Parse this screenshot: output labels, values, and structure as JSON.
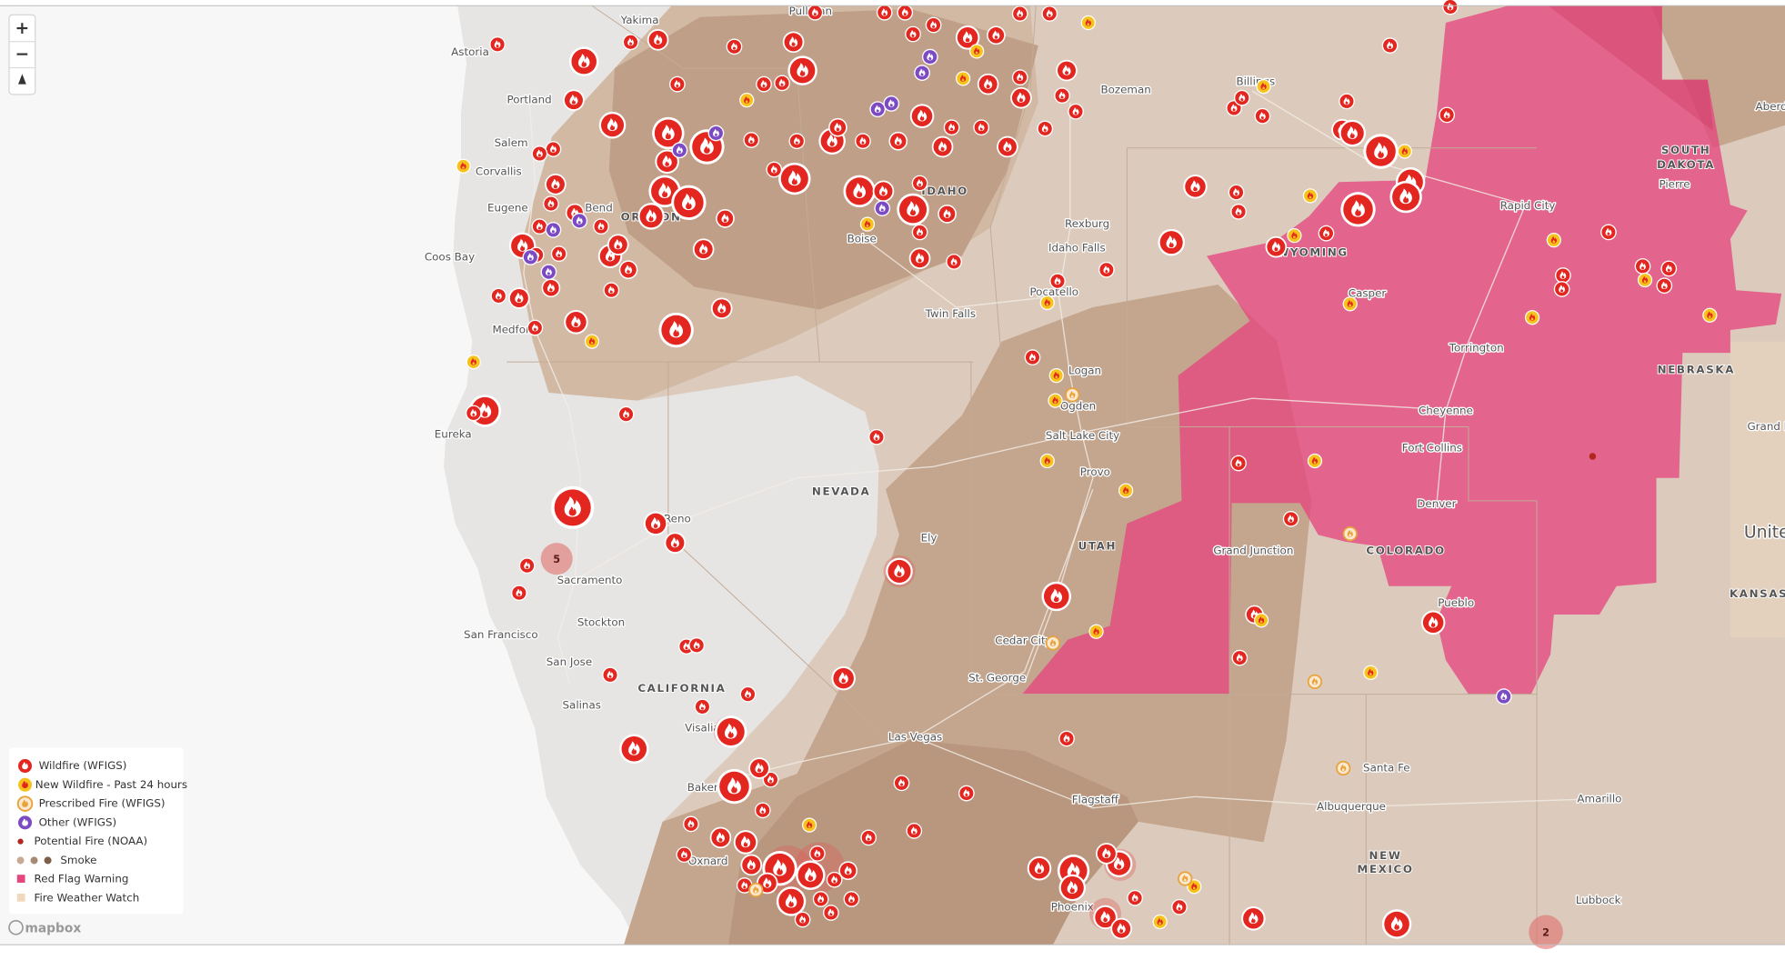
{
  "map": {
    "controls": {
      "zoom_in": "+",
      "zoom_out": "−"
    },
    "labels": [
      "Yakima",
      "Pullman",
      "Astoria",
      "Portland",
      "Salem",
      "Corvallis",
      "Eugene",
      "Bend",
      "OREGON",
      "Coos Bay",
      "Medford",
      "Eureka",
      "Reno",
      "NEVADA",
      "Sacramento",
      "San Francisco",
      "Stockton",
      "San Jose",
      "CALIFORNIA",
      "Salinas",
      "Visalia",
      "Bakersfield",
      "Oxnard",
      "Las Vegas",
      "Ely",
      "Boise",
      "IDAHO",
      "Bozeman",
      "Billings",
      "Rexburg",
      "Idaho Falls",
      "Pocatello",
      "Twin Falls",
      "Logan",
      "Ogden",
      "Salt Lake City",
      "Provo",
      "UTAH",
      "Cedar City",
      "St. George",
      "Flagstaff",
      "Phoenix",
      "WYOMING",
      "Casper",
      "Rapid City",
      "SOUTH",
      "DAKOTA",
      "Pierre",
      "Torrington",
      "NEBRASKA",
      "Cheyenne",
      "Fort Collins",
      "Denver",
      "Grand Junction",
      "COLORADO",
      "Pueblo",
      "KANSAS",
      "Santa Fe",
      "Albuquerque",
      "NEW",
      "MEXICO",
      "Amarillo",
      "Lubbock",
      "United",
      "Grand Island",
      "Aberdeen"
    ],
    "clusters": [
      "5",
      "2"
    ],
    "legend": [
      "Wildfire (WFIGS)",
      "New Wildfire - Past 24 hours",
      "Prescribed Fire (WFIGS)",
      "Other (WFIGS)",
      "Potential Fire (NOAA)",
      "Smoke",
      "Red Flag Warning",
      "Fire Weather Watch"
    ],
    "attribution": "mapbox"
  }
}
